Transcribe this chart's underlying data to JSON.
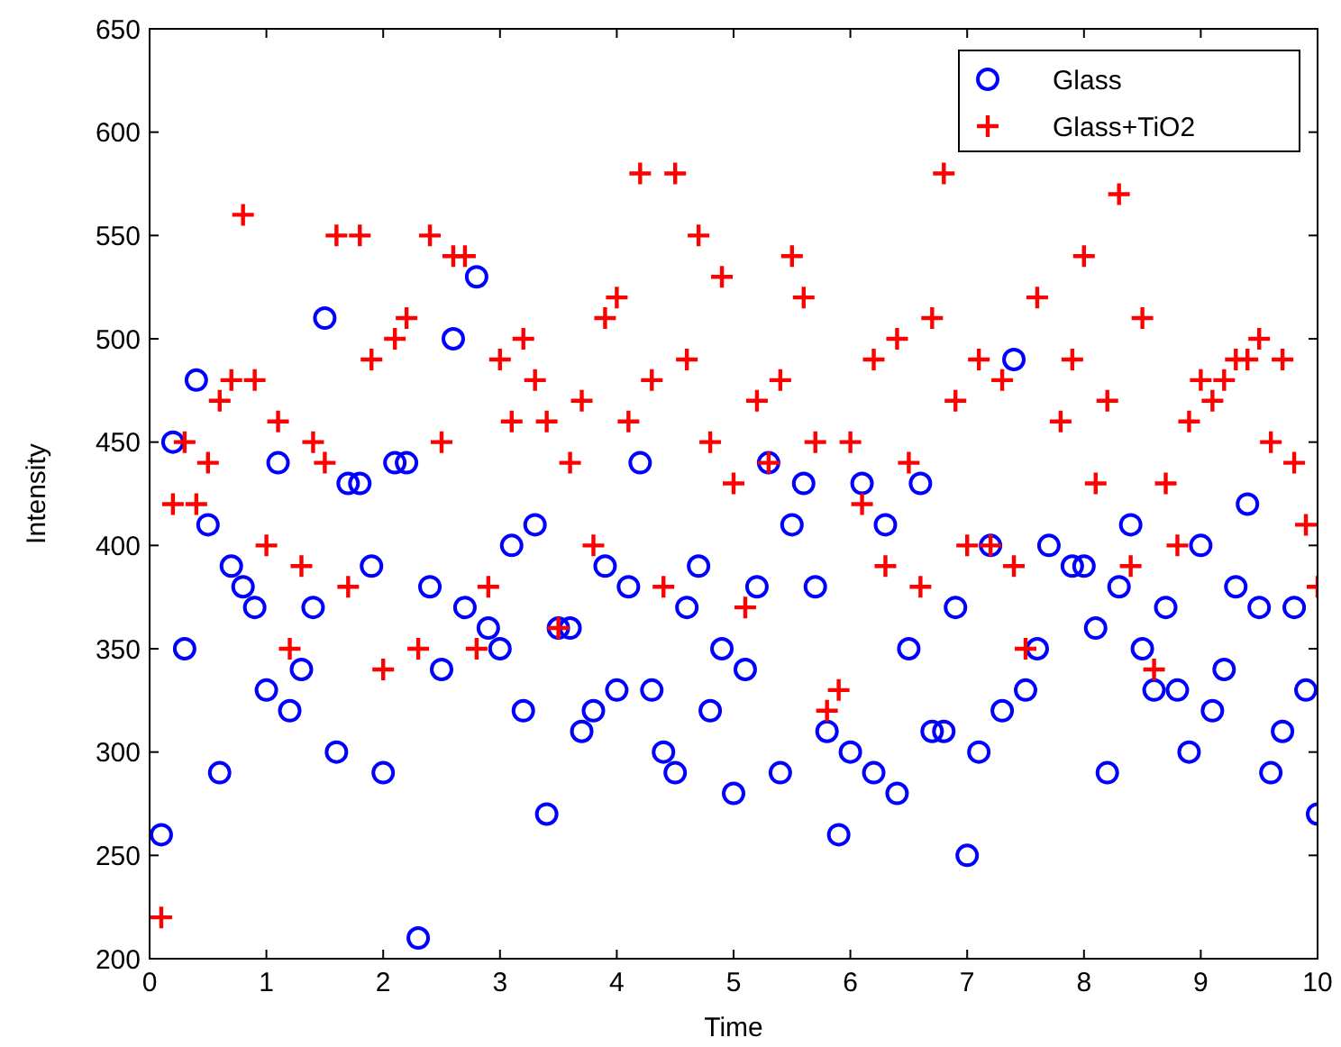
{
  "chart_data": {
    "type": "scatter",
    "xlabel": "Time",
    "ylabel": "Intensity",
    "xlim": [
      0,
      10
    ],
    "ylim": [
      200,
      650
    ],
    "xticks": [
      0,
      1,
      2,
      3,
      4,
      5,
      6,
      7,
      8,
      9,
      10
    ],
    "yticks": [
      200,
      250,
      300,
      350,
      400,
      450,
      500,
      550,
      600,
      650
    ],
    "legend": "top right",
    "series": [
      {
        "name": "Glass",
        "color": "#0000ff",
        "marker": "circle",
        "x": [
          0.1,
          0.2,
          0.3,
          0.4,
          0.5,
          0.6,
          0.7,
          0.8,
          0.9,
          1.0,
          1.1,
          1.2,
          1.3,
          1.4,
          1.5,
          1.6,
          1.7,
          1.8,
          1.9,
          2.0,
          2.1,
          2.2,
          2.3,
          2.4,
          2.5,
          2.6,
          2.7,
          2.8,
          2.9,
          3.0,
          3.1,
          3.2,
          3.3,
          3.4,
          3.5,
          3.6,
          3.7,
          3.8,
          3.9,
          4.0,
          4.1,
          4.2,
          4.3,
          4.4,
          4.5,
          4.6,
          4.7,
          4.8,
          4.9,
          5.0,
          5.1,
          5.2,
          5.3,
          5.4,
          5.5,
          5.6,
          5.7,
          5.8,
          5.9,
          6.0,
          6.1,
          6.2,
          6.3,
          6.4,
          6.5,
          6.6,
          6.7,
          6.8,
          6.9,
          7.0,
          7.1,
          7.2,
          7.3,
          7.4,
          7.5,
          7.6,
          7.7,
          7.9,
          8.0,
          8.1,
          8.2,
          8.3,
          8.4,
          8.5,
          8.6,
          8.7,
          8.8,
          8.9,
          9.0,
          9.1,
          9.2,
          9.3,
          9.4,
          9.5,
          9.6,
          9.7,
          9.8,
          9.9,
          10.0
        ],
        "values": [
          260,
          450,
          350,
          480,
          410,
          290,
          390,
          380,
          370,
          330,
          440,
          320,
          340,
          370,
          510,
          300,
          430,
          430,
          390,
          290,
          440,
          440,
          210,
          380,
          340,
          500,
          370,
          530,
          360,
          350,
          400,
          320,
          410,
          270,
          360,
          360,
          310,
          320,
          390,
          330,
          380,
          440,
          330,
          300,
          290,
          370,
          390,
          320,
          350,
          280,
          340,
          380,
          440,
          290,
          410,
          430,
          380,
          310,
          260,
          300,
          430,
          290,
          410,
          280,
          350,
          430,
          310,
          310,
          370,
          250,
          300,
          400,
          320,
          490,
          330,
          350,
          400,
          390,
          390,
          360,
          290,
          380,
          410,
          350,
          330,
          370,
          330,
          300,
          400,
          320,
          340,
          380,
          420,
          370,
          290,
          310,
          370,
          330,
          270
        ]
      },
      {
        "name": "Glass+TiO2",
        "color": "#ff0000",
        "marker": "cross",
        "x": [
          0.1,
          0.2,
          0.3,
          0.4,
          0.5,
          0.6,
          0.7,
          0.8,
          0.9,
          1.0,
          1.1,
          1.2,
          1.3,
          1.4,
          1.5,
          1.6,
          1.7,
          1.8,
          1.9,
          2.0,
          2.1,
          2.2,
          2.3,
          2.4,
          2.5,
          2.6,
          2.7,
          2.8,
          2.9,
          3.0,
          3.1,
          3.2,
          3.3,
          3.4,
          3.5,
          3.6,
          3.7,
          3.8,
          3.9,
          4.0,
          4.1,
          4.2,
          4.3,
          4.4,
          4.5,
          4.6,
          4.7,
          4.8,
          4.9,
          5.0,
          5.1,
          5.2,
          5.3,
          5.4,
          5.5,
          5.6,
          5.7,
          5.8,
          5.9,
          6.0,
          6.1,
          6.2,
          6.3,
          6.4,
          6.5,
          6.6,
          6.7,
          6.8,
          6.9,
          7.0,
          7.1,
          7.2,
          7.3,
          7.4,
          7.5,
          7.6,
          7.8,
          7.9,
          8.0,
          8.1,
          8.2,
          8.3,
          8.4,
          8.5,
          8.6,
          8.7,
          8.8,
          8.9,
          9.0,
          9.1,
          9.2,
          9.3,
          9.4,
          9.5,
          9.6,
          9.7,
          9.8,
          9.9,
          10.0
        ],
        "values": [
          220,
          420,
          450,
          420,
          440,
          470,
          480,
          560,
          480,
          400,
          460,
          350,
          390,
          450,
          440,
          550,
          380,
          550,
          490,
          340,
          500,
          510,
          350,
          550,
          450,
          540,
          540,
          350,
          380,
          490,
          460,
          500,
          480,
          460,
          360,
          440,
          470,
          400,
          510,
          520,
          460,
          580,
          480,
          380,
          580,
          490,
          550,
          450,
          530,
          430,
          370,
          470,
          440,
          480,
          540,
          520,
          450,
          320,
          330,
          450,
          420,
          490,
          390,
          500,
          440,
          380,
          510,
          580,
          470,
          400,
          490,
          400,
          480,
          390,
          350,
          520,
          460,
          490,
          540,
          430,
          470,
          570,
          390,
          510,
          340,
          430,
          400,
          460,
          480,
          470,
          480,
          490,
          490,
          500,
          450,
          490,
          440,
          410,
          380
        ]
      }
    ]
  }
}
